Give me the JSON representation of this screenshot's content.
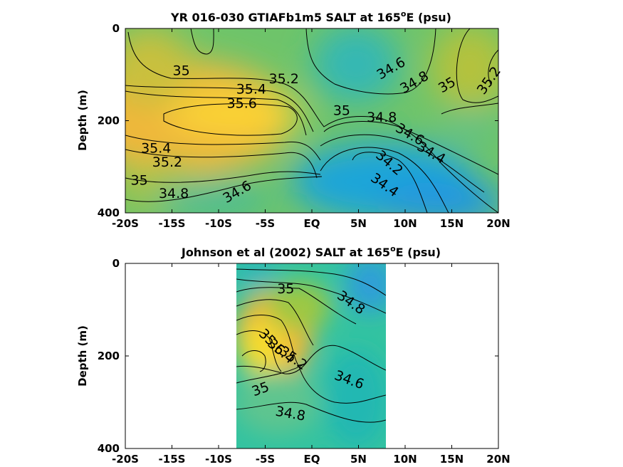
{
  "chart_data": [
    {
      "type": "heatmap",
      "title": "YR 016-030 GTIAFb1m5 SALT at 165",
      "title_super": "o",
      "title_tail": "E (psu)",
      "ylabel": "Depth (m)",
      "xlim": [
        -20,
        20
      ],
      "ylim": [
        0,
        400
      ],
      "y_inverted": true,
      "x_ticks": [
        -20,
        -15,
        -10,
        -5,
        0,
        5,
        10,
        15,
        20
      ],
      "x_tick_labels": [
        "-20S",
        "-15S",
        "-10S",
        "-5S",
        "EQ",
        "5N",
        "10N",
        "15N",
        "20N"
      ],
      "y_ticks": [
        0,
        200,
        400
      ],
      "y_tick_labels": [
        "0",
        "200",
        "400"
      ],
      "data_xrange": [
        -20,
        20
      ],
      "colorscale": "parula",
      "clim": [
        34.2,
        35.7
      ],
      "grid": false,
      "contour_labels": [
        {
          "text": "35",
          "x": -14,
          "y": 92,
          "angle": 0
        },
        {
          "text": "35.2",
          "x": -3,
          "y": 110,
          "angle": 0
        },
        {
          "text": "35.4",
          "x": -6.5,
          "y": 132,
          "angle": 0
        },
        {
          "text": "35.6",
          "x": -7.5,
          "y": 163,
          "angle": 0
        },
        {
          "text": "34.6",
          "x": 8.5,
          "y": 87,
          "angle": -30
        },
        {
          "text": "34.8",
          "x": 11,
          "y": 117,
          "angle": -30
        },
        {
          "text": "35",
          "x": 14.5,
          "y": 123,
          "angle": -30
        },
        {
          "text": "35.2",
          "x": 19,
          "y": 113,
          "angle": -55
        },
        {
          "text": "35",
          "x": 3.2,
          "y": 178,
          "angle": 0
        },
        {
          "text": "34.8",
          "x": 7.5,
          "y": 193,
          "angle": 0
        },
        {
          "text": "34.6",
          "x": 10.5,
          "y": 230,
          "angle": 30
        },
        {
          "text": "34.4",
          "x": 12.8,
          "y": 270,
          "angle": 30
        },
        {
          "text": "34.2",
          "x": 8.3,
          "y": 292,
          "angle": 40
        },
        {
          "text": "34.4",
          "x": 7.8,
          "y": 340,
          "angle": 35
        },
        {
          "text": "35.4",
          "x": -16.7,
          "y": 260,
          "angle": 0
        },
        {
          "text": "35.2",
          "x": -15.5,
          "y": 290,
          "angle": 0
        },
        {
          "text": "35",
          "x": -18.5,
          "y": 330,
          "angle": 0
        },
        {
          "text": "34.8",
          "x": -14.8,
          "y": 358,
          "angle": 0
        },
        {
          "text": "34.6",
          "x": -8,
          "y": 355,
          "angle": -30
        }
      ]
    },
    {
      "type": "heatmap",
      "title": "Johnson et al (2002) SALT at 165",
      "title_super": "o",
      "title_tail": "E (psu)",
      "ylabel": "Depth (m)",
      "xlim": [
        -20,
        20
      ],
      "ylim": [
        0,
        400
      ],
      "y_inverted": true,
      "x_ticks": [
        -20,
        -15,
        -10,
        -5,
        0,
        5,
        10,
        15,
        20
      ],
      "x_tick_labels": [
        "-20S",
        "-15S",
        "-10S",
        "-5S",
        "EQ",
        "5N",
        "10N",
        "15N",
        "20N"
      ],
      "y_ticks": [
        0,
        200,
        400
      ],
      "y_tick_labels": [
        "0",
        "200",
        "400"
      ],
      "data_xrange": [
        -8,
        8
      ],
      "colorscale": "parula",
      "clim": [
        34.2,
        35.7
      ],
      "grid": false,
      "contour_labels": [
        {
          "text": "35",
          "x": -2.8,
          "y": 55,
          "angle": 0
        },
        {
          "text": "34.8",
          "x": 4.2,
          "y": 85,
          "angle": 35
        },
        {
          "text": "35.6",
          "x": -4.3,
          "y": 170,
          "angle": 45
        },
        {
          "text": "35.4",
          "x": -3.3,
          "y": 190,
          "angle": 40
        },
        {
          "text": "35.2",
          "x": -2.0,
          "y": 205,
          "angle": 35
        },
        {
          "text": "34.6",
          "x": 4.0,
          "y": 252,
          "angle": 20
        },
        {
          "text": "35",
          "x": -5.5,
          "y": 272,
          "angle": -20
        },
        {
          "text": "34.8",
          "x": -2.3,
          "y": 325,
          "angle": 10
        }
      ]
    }
  ]
}
